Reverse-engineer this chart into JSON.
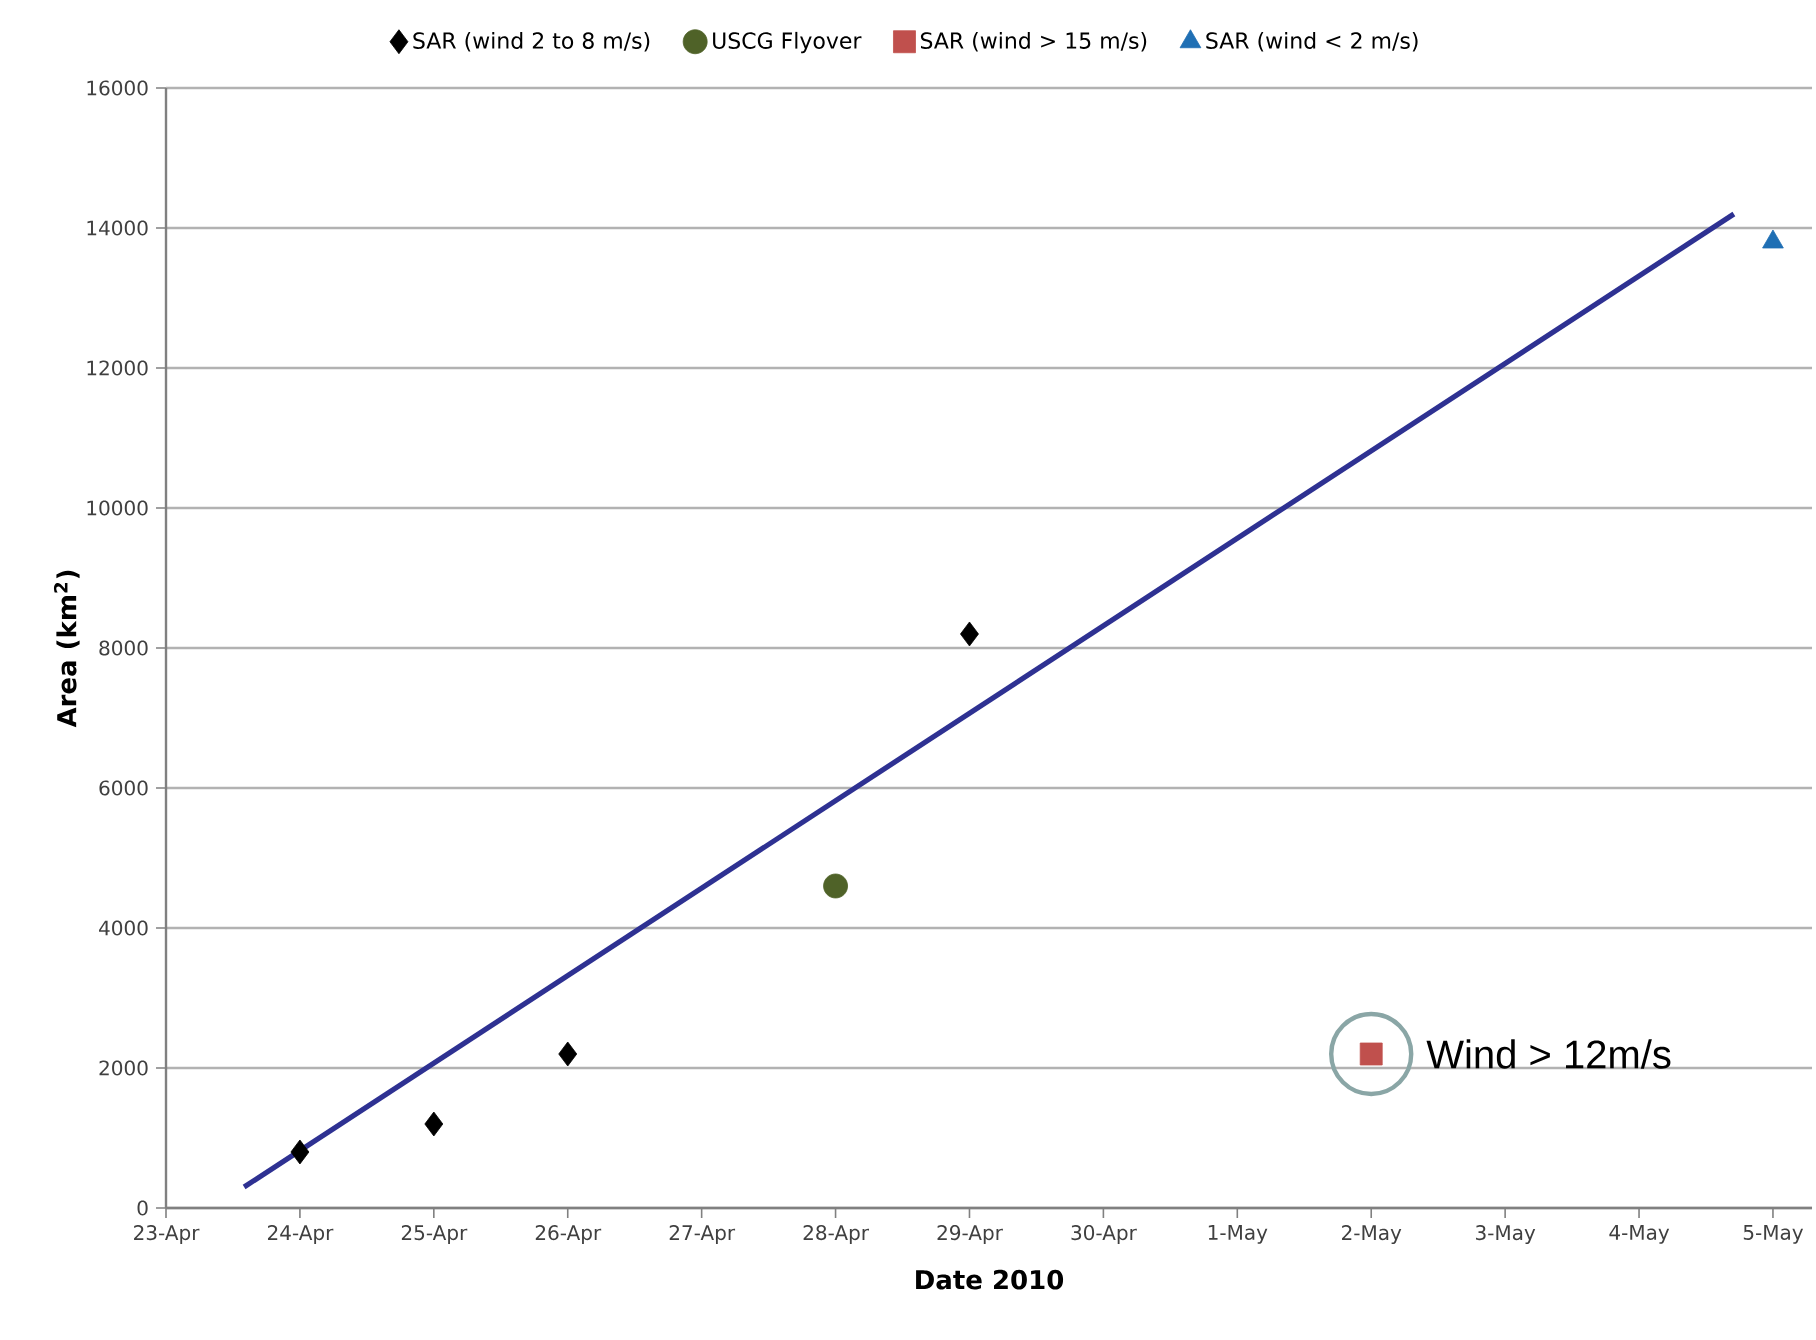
{
  "chart_data": {
    "type": "scatter",
    "xlabel": "Date 2010",
    "ylabel": "Area  (km$^{2}$)",
    "series": [
      {
        "name": "SAR (wind 2 to 8 m/s)",
        "color": "#000000",
        "marker": "diamond",
        "x": [
          "2010-04-24",
          "2010-04-25",
          "2010-04-26",
          "2010-04-29"
        ],
        "values": [
          800,
          1200,
          2200,
          8200
        ]
      },
      {
        "name": "USCG Flyover",
        "color": "#4f6228",
        "marker": "circle",
        "x": [
          "2010-04-28"
        ],
        "values": [
          4600
        ]
      },
      {
        "name": "SAR (wind > 15 m/s)",
        "color": "#c0504d",
        "marker": "square",
        "x": [
          "2010-05-02"
        ],
        "values": [
          2200
        ]
      },
      {
        "name": "SAR (wind < 2 m/s)",
        "color": "#1f6fb4",
        "marker": "triangle",
        "x": [
          "2010-05-05"
        ],
        "values": [
          13800
        ]
      },
      {
        "type": "line",
        "color": "#2e3192",
        "marker": "none",
        "line_style": "solid",
        "x": [
          "2010-04-23T14:00",
          "2010-05-04T17:00"
        ],
        "values": [
          300,
          14200
        ]
      }
    ],
    "xlim": [
      "2010-04-23",
      "2010-05-05T07:00"
    ],
    "xticks": [
      {
        "value": "2010-04-23",
        "label": "23-Apr"
      },
      {
        "value": "2010-04-24",
        "label": "24-Apr"
      },
      {
        "value": "2010-04-25",
        "label": "25-Apr"
      },
      {
        "value": "2010-04-26",
        "label": "26-Apr"
      },
      {
        "value": "2010-04-27",
        "label": "27-Apr"
      },
      {
        "value": "2010-04-28",
        "label": "28-Apr"
      },
      {
        "value": "2010-04-29",
        "label": "29-Apr"
      },
      {
        "value": "2010-04-30",
        "label": "30-Apr"
      },
      {
        "value": "2010-05-01",
        "label": "1-May"
      },
      {
        "value": "2010-05-02",
        "label": "2-May"
      },
      {
        "value": "2010-05-03",
        "label": "3-May"
      },
      {
        "value": "2010-05-04",
        "label": "4-May"
      },
      {
        "value": "2010-05-05",
        "label": "5-May"
      }
    ],
    "ylim": [
      0,
      16000
    ],
    "yticks": [
      0,
      2000,
      4000,
      6000,
      8000,
      10000,
      12000,
      14000,
      16000
    ],
    "grid": "y",
    "legend": "top",
    "annotations": [
      {
        "text": "Wind > 12m/s",
        "x": "2010-05-02",
        "y": 2200
      }
    ]
  }
}
